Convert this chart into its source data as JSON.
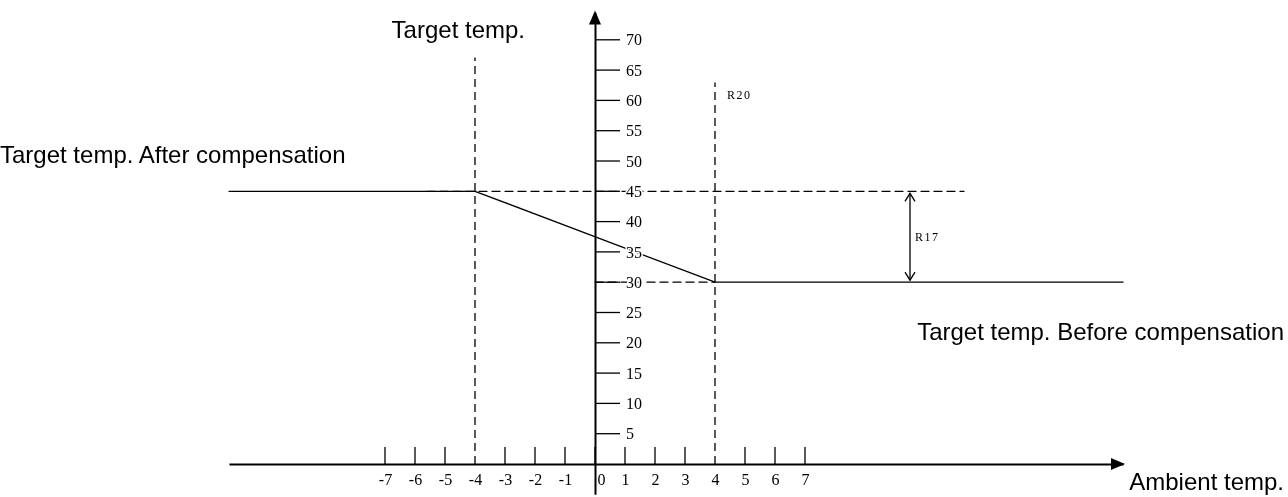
{
  "chart_data": {
    "type": "line",
    "xlabel": "Ambient temp.",
    "ylabel": "Target temp.",
    "xlim": [
      -12.2,
      17.6
    ],
    "ylim": [
      -5,
      74.5
    ],
    "xticks": [
      -7,
      -6,
      -5,
      -4,
      -3,
      -2,
      -1,
      0,
      1,
      2,
      3,
      4,
      5,
      6,
      7
    ],
    "yticks": [
      5,
      10,
      15,
      20,
      25,
      30,
      35,
      40,
      45,
      50,
      55,
      60,
      65,
      70
    ],
    "grid": false,
    "marker": "none",
    "series": [
      {
        "color": "#000000",
        "line_style": "solid",
        "x": [
          -12.2,
          -4,
          4,
          17.6
        ],
        "values": [
          45,
          45,
          30,
          30
        ]
      },
      {
        "color": "#000000",
        "line_style": "dashed",
        "x": [
          -5.6,
          12.3
        ],
        "values": [
          45,
          45
        ]
      },
      {
        "color": "#000000",
        "line_style": "dashed",
        "x": [
          0,
          4
        ],
        "values": [
          30,
          30
        ]
      }
    ],
    "ref_lines": [
      {
        "axis": "x",
        "value": -4,
        "color": "#000000",
        "line_style": "dashed"
      },
      {
        "axis": "x",
        "value": 4,
        "label": "R20",
        "color": "#000000",
        "line_style": "dashed"
      }
    ],
    "annotations": [
      "Target temp. After compensation",
      "Target temp. Before compensation",
      "R17"
    ]
  }
}
